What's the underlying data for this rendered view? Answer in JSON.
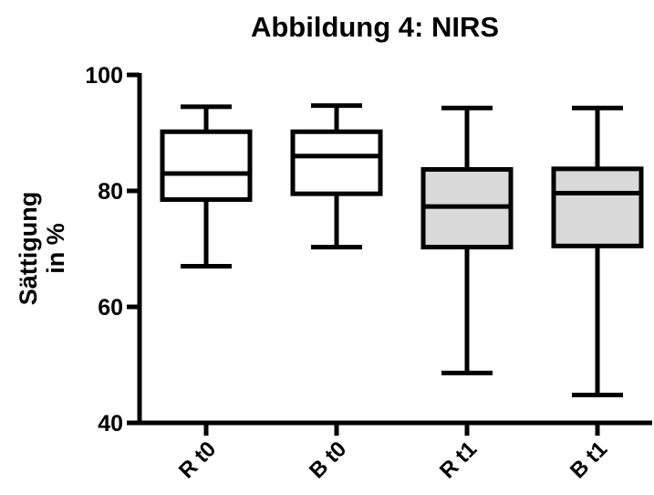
{
  "chart_data": {
    "type": "box",
    "title": "Abbildung 4: NIRS",
    "ylabel": [
      "Sättigung",
      "in %"
    ],
    "xlabel": "",
    "ylim": [
      40,
      100
    ],
    "yticks": [
      "40",
      "60",
      "80",
      "100"
    ],
    "categories": [
      "R t0",
      "B t0",
      "R t1",
      "B t1"
    ],
    "boxes": [
      {
        "label": "R t0",
        "min": 67,
        "q1": 78.5,
        "median": 83,
        "q3": 90.2,
        "max": 94.5,
        "fill": "#ffffff"
      },
      {
        "label": "B t0",
        "min": 70.3,
        "q1": 79.5,
        "median": 86,
        "q3": 90.2,
        "max": 94.7,
        "fill": "#ffffff"
      },
      {
        "label": "R t1",
        "min": 48.6,
        "q1": 70.3,
        "median": 77.3,
        "q3": 83.7,
        "max": 94.3,
        "fill": "#d9d9d9"
      },
      {
        "label": "B t1",
        "min": 44.8,
        "q1": 70.5,
        "median": 79.6,
        "q3": 83.8,
        "max": 94.3,
        "fill": "#d9d9d9"
      }
    ],
    "grid": false,
    "legend": "none"
  }
}
